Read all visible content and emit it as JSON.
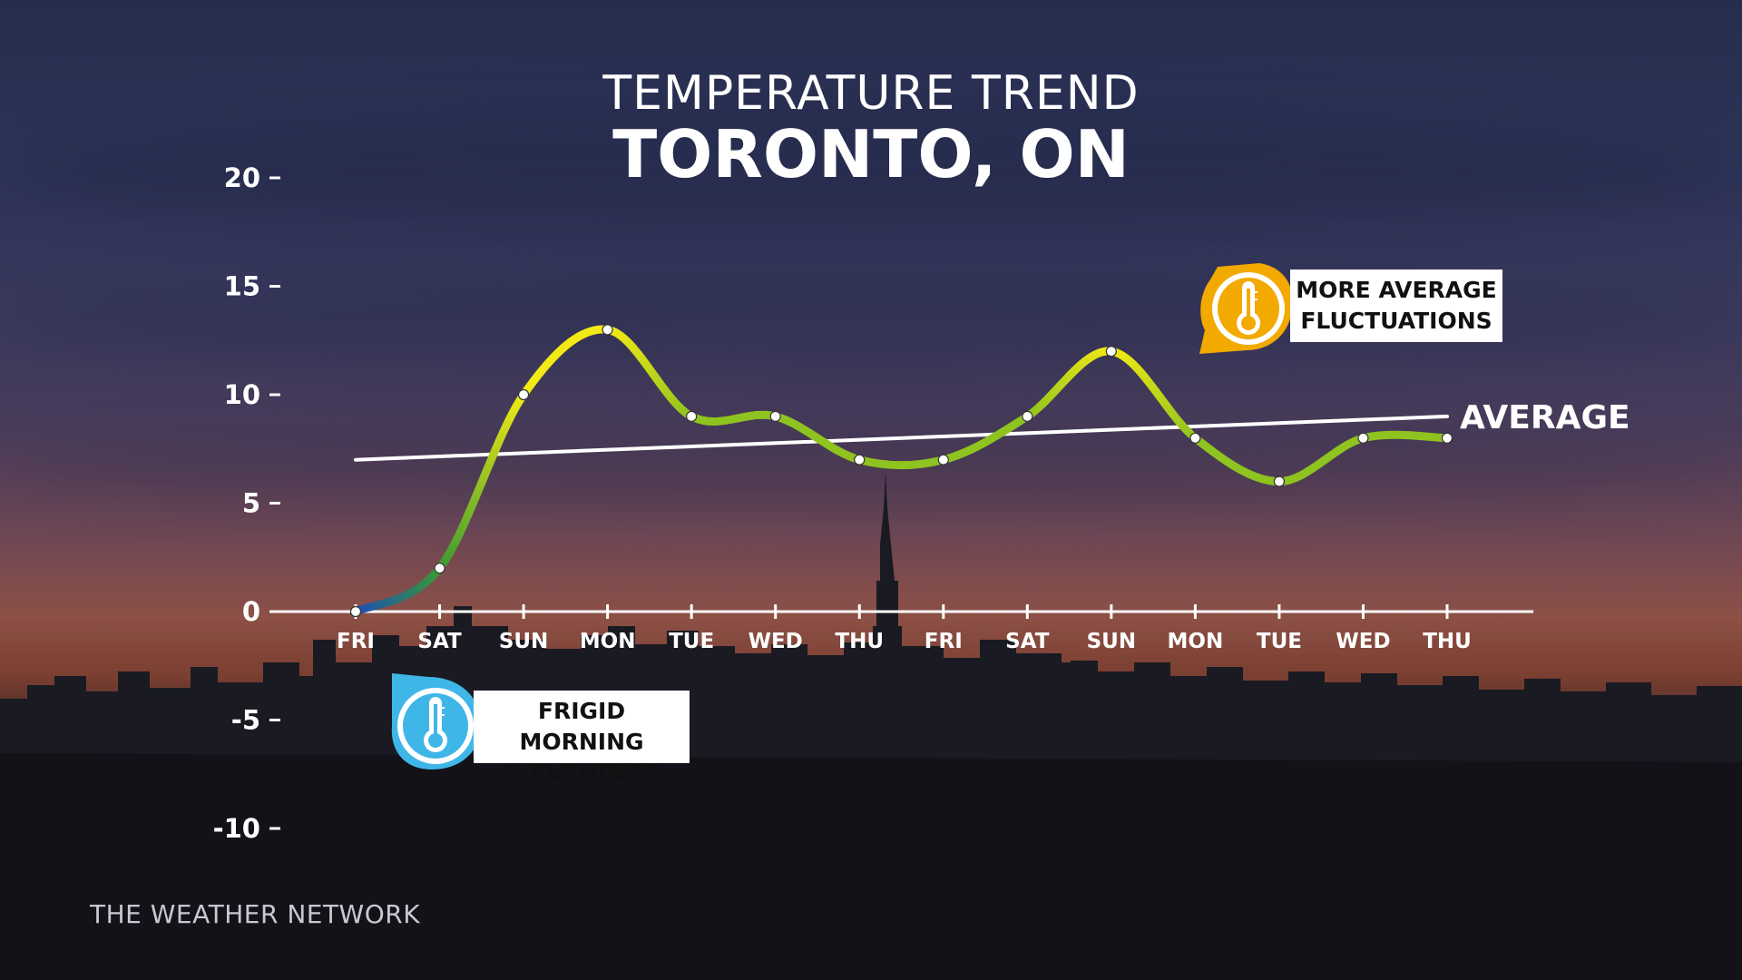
{
  "header": {
    "title_line1": "TEMPERATURE TREND",
    "title_line2": "TORONTO, ON"
  },
  "brand": "THE WEATHER NETWORK",
  "callouts": {
    "warm": {
      "line1": "MORE AVERAGE",
      "line2": "FLUCTUATIONS",
      "icon": "thermometer-icon",
      "color": "#f2a900"
    },
    "cold": {
      "line1": "FRIGID MORNING",
      "line2": "& EVENINGS",
      "icon": "thermometer-icon",
      "color": "#3fb6e8"
    }
  },
  "colors": {
    "warm_line": "#f2ea14",
    "mild_line": "#8fc31f",
    "cold_line": "#1f4fb5",
    "average_line": "#ffffff",
    "axis_top": "#f2ea14",
    "axis_mid": "#3a9a32",
    "axis_bottom": "#5a79e0"
  },
  "chart_data": {
    "type": "line",
    "categories": [
      "FRI",
      "SAT",
      "SUN",
      "MON",
      "TUE",
      "WED",
      "THU",
      "FRI",
      "SAT",
      "SUN",
      "MON",
      "TUE",
      "WED",
      "THU"
    ],
    "series": [
      {
        "values": [
          0,
          2,
          10,
          13,
          9,
          9,
          7,
          7,
          9,
          12,
          8,
          6,
          8,
          8
        ]
      },
      {
        "name": "AVERAGE",
        "values": [
          7,
          7.15,
          7.3,
          7.45,
          7.6,
          7.75,
          7.9,
          8.05,
          8.2,
          8.35,
          8.5,
          8.65,
          8.8,
          9
        ]
      }
    ],
    "y_ticks": [
      20,
      15,
      10,
      5,
      0,
      -5,
      -10
    ],
    "ylim": [
      -10,
      20
    ],
    "grid": false
  }
}
